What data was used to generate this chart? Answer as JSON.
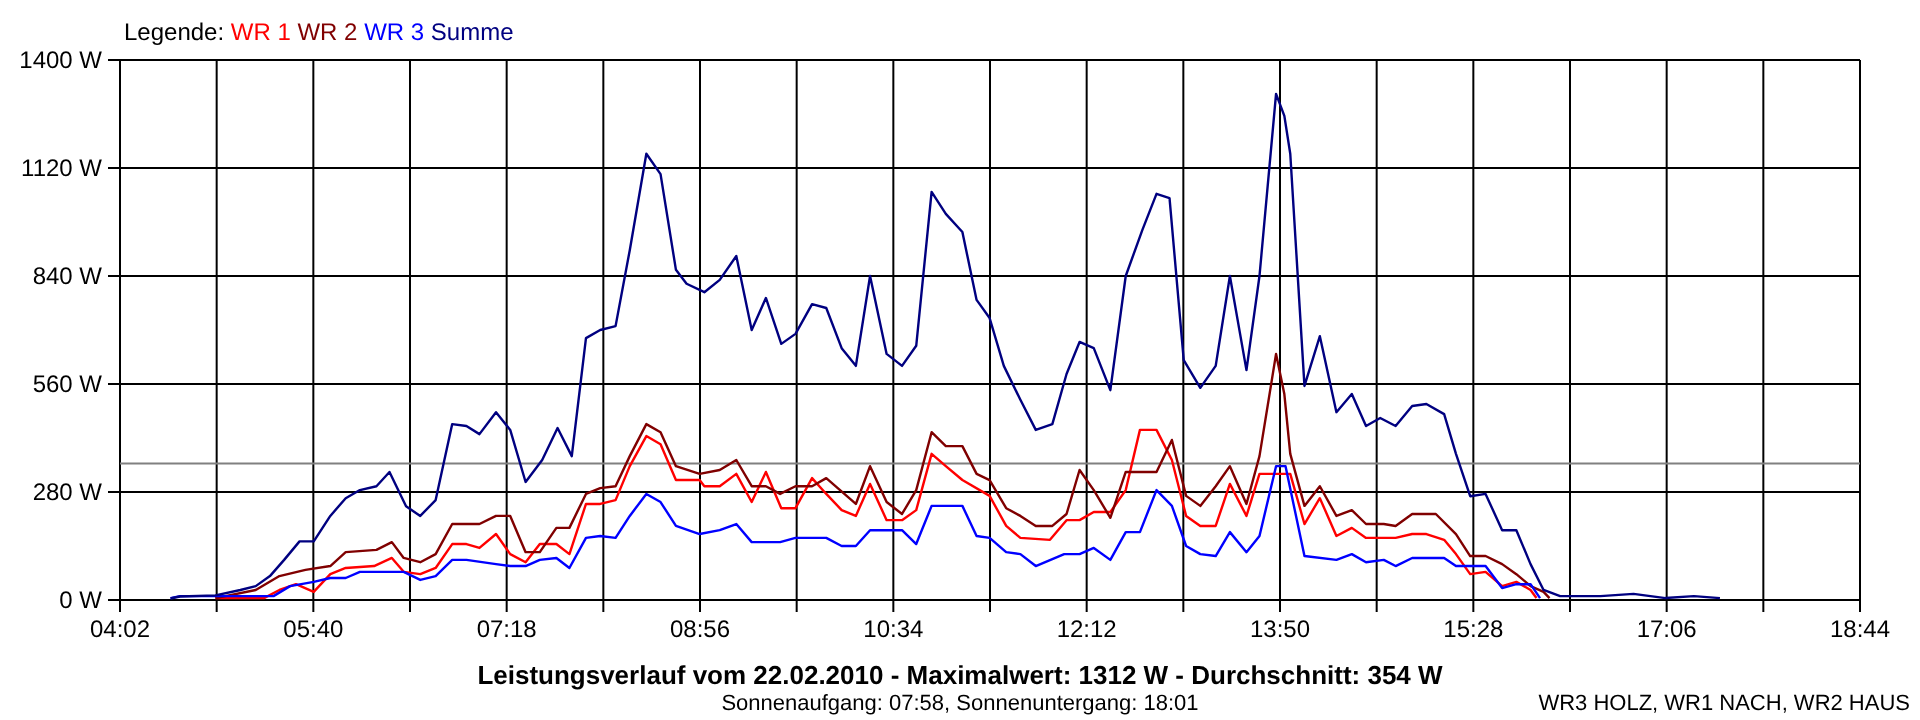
{
  "chart_data": {
    "type": "line",
    "title": "Leistungsverlauf vom 22.02.2010 - Maximalwert: 1312 W - Durchschnitt: 354 W",
    "subtitle": "Sonnenaufgang: 07:58, Sonnenuntergang: 18:01",
    "legend_title": "Legende:",
    "legend": "top left",
    "grid": true,
    "annotations": [
      "WR3 HOLZ, WR1 NACH, WR2 HAUS"
    ],
    "xlim": [
      4.0333,
      18.7333
    ],
    "xticks": [
      {
        "value": 4.0333,
        "label": "04:02"
      },
      {
        "value": 4.85,
        "label": null
      },
      {
        "value": 5.6667,
        "label": "05:40"
      },
      {
        "value": 6.4833,
        "label": null
      },
      {
        "value": 7.3,
        "label": "07:18"
      },
      {
        "value": 8.1167,
        "label": null
      },
      {
        "value": 8.9333,
        "label": "08:56"
      },
      {
        "value": 9.75,
        "label": null
      },
      {
        "value": 10.5667,
        "label": "10:34"
      },
      {
        "value": 11.3833,
        "label": null
      },
      {
        "value": 12.2,
        "label": "12:12"
      },
      {
        "value": 13.0167,
        "label": null
      },
      {
        "value": 13.8333,
        "label": "13:50"
      },
      {
        "value": 14.65,
        "label": null
      },
      {
        "value": 15.4667,
        "label": "15:28"
      },
      {
        "value": 16.2833,
        "label": null
      },
      {
        "value": 17.1,
        "label": "17:06"
      },
      {
        "value": 17.9167,
        "label": null
      },
      {
        "value": 18.7333,
        "label": "18:44"
      }
    ],
    "ylim": [
      0,
      1400
    ],
    "yticks": [
      {
        "value": 0,
        "label": "0 W"
      },
      {
        "value": 280,
        "label": "280 W"
      },
      {
        "value": 560,
        "label": "560 W"
      },
      {
        "value": 840,
        "label": "840 W"
      },
      {
        "value": 1120,
        "label": "1120 W"
      },
      {
        "value": 1400,
        "label": "1400 W"
      }
    ],
    "ref_lines": [
      {
        "axis": "y",
        "value": 354,
        "color": "#808080"
      }
    ],
    "series": [
      {
        "name": "WR 1",
        "color": "#ff0000",
        "x": [
          4.84,
          5.25,
          5.38,
          5.52,
          5.67,
          5.81,
          5.94,
          6.18,
          6.33,
          6.43,
          6.57,
          6.7,
          6.84,
          6.96,
          7.07,
          7.21,
          7.33,
          7.46,
          7.58,
          7.72,
          7.83,
          7.97,
          8.09,
          8.22,
          8.34,
          8.48,
          8.6,
          8.73,
          8.93,
          8.97,
          9.1,
          9.24,
          9.37,
          9.49,
          9.62,
          9.74,
          9.88,
          10.0,
          10.13,
          10.25,
          10.37,
          10.51,
          10.64,
          10.76,
          10.89,
          11.01,
          11.15,
          11.38,
          11.52,
          11.64,
          11.89,
          12.03,
          12.14,
          12.26,
          12.4,
          12.53,
          12.65,
          12.79,
          12.92,
          13.04,
          13.16,
          13.29,
          13.41,
          13.55,
          13.66,
          13.8,
          13.92,
          14.04,
          14.17,
          14.31,
          14.44,
          14.56,
          14.81,
          14.95,
          15.07,
          15.22,
          15.32,
          15.44,
          15.57,
          15.71,
          15.83,
          15.95,
          16.0
        ],
        "values": [
          5,
          5,
          26,
          41,
          21,
          67,
          83,
          88,
          109,
          73,
          67,
          83,
          145,
          145,
          135,
          171,
          119,
          98,
          145,
          145,
          119,
          249,
          249,
          259,
          347,
          425,
          404,
          311,
          311,
          295,
          295,
          327,
          254,
          332,
          238,
          238,
          316,
          275,
          233,
          218,
          301,
          207,
          207,
          233,
          379,
          347,
          311,
          270,
          192,
          161,
          156,
          207,
          207,
          228,
          228,
          285,
          441,
          441,
          363,
          218,
          192,
          192,
          301,
          218,
          327,
          327,
          327,
          197,
          264,
          166,
          187,
          161,
          161,
          171,
          171,
          156,
          119,
          67,
          73,
          36,
          47,
          26,
          5
        ]
      },
      {
        "name": "WR 2",
        "color": "#800000",
        "x": [
          4.84,
          5.18,
          5.38,
          5.6,
          5.81,
          5.94,
          6.2,
          6.33,
          6.43,
          6.57,
          6.7,
          6.84,
          7.07,
          7.21,
          7.33,
          7.46,
          7.58,
          7.72,
          7.83,
          7.97,
          8.09,
          8.22,
          8.34,
          8.48,
          8.6,
          8.73,
          8.93,
          9.1,
          9.24,
          9.37,
          9.49,
          9.61,
          9.74,
          9.88,
          10.0,
          10.25,
          10.37,
          10.51,
          10.64,
          10.76,
          10.89,
          11.01,
          11.15,
          11.27,
          11.38,
          11.52,
          11.64,
          11.77,
          11.91,
          12.03,
          12.14,
          12.26,
          12.4,
          12.53,
          12.79,
          12.92,
          13.04,
          13.16,
          13.29,
          13.41,
          13.55,
          13.66,
          13.8,
          13.87,
          13.92,
          14.04,
          14.17,
          14.31,
          14.44,
          14.56,
          14.71,
          14.81,
          14.95,
          15.15,
          15.32,
          15.44,
          15.57,
          15.71,
          15.83,
          15.95,
          16.06,
          16.11
        ],
        "values": [
          5,
          26,
          62,
          78,
          88,
          124,
          130,
          150,
          109,
          98,
          119,
          197,
          197,
          218,
          218,
          124,
          124,
          187,
          187,
          275,
          290,
          295,
          373,
          456,
          435,
          347,
          327,
          337,
          363,
          295,
          295,
          275,
          295,
          295,
          316,
          249,
          347,
          254,
          223,
          285,
          435,
          399,
          399,
          327,
          311,
          238,
          218,
          192,
          192,
          223,
          337,
          285,
          213,
          332,
          332,
          415,
          270,
          244,
          295,
          347,
          249,
          373,
          638,
          534,
          379,
          244,
          295,
          218,
          233,
          197,
          197,
          192,
          223,
          223,
          171,
          114,
          114,
          93,
          67,
          36,
          21,
          5
        ]
      },
      {
        "name": "WR 3",
        "color": "#0000ff",
        "x": [
          4.46,
          4.54,
          4.84,
          5.05,
          5.33,
          5.47,
          5.67,
          5.81,
          5.94,
          6.06,
          6.43,
          6.57,
          6.7,
          6.84,
          6.96,
          7.21,
          7.33,
          7.46,
          7.58,
          7.72,
          7.83,
          7.97,
          8.09,
          8.22,
          8.34,
          8.48,
          8.6,
          8.73,
          8.93,
          9.1,
          9.24,
          9.37,
          9.61,
          9.74,
          10.0,
          10.13,
          10.25,
          10.37,
          10.64,
          10.76,
          10.89,
          11.15,
          11.27,
          11.38,
          11.52,
          11.64,
          11.77,
          12.01,
          12.14,
          12.26,
          12.4,
          12.53,
          12.65,
          12.79,
          12.92,
          13.04,
          13.16,
          13.29,
          13.41,
          13.55,
          13.66,
          13.8,
          13.88,
          14.04,
          14.31,
          14.44,
          14.56,
          14.71,
          14.81,
          14.95,
          15.22,
          15.32,
          15.57,
          15.71,
          15.83,
          15.95,
          16.03
        ],
        "values": [
          5,
          10,
          10,
          10,
          10,
          36,
          47,
          57,
          57,
          73,
          73,
          52,
          62,
          104,
          104,
          93,
          88,
          88,
          104,
          109,
          83,
          161,
          166,
          161,
          218,
          275,
          254,
          192,
          171,
          181,
          197,
          150,
          150,
          161,
          161,
          140,
          140,
          181,
          181,
          145,
          244,
          244,
          166,
          161,
          124,
          119,
          88,
          119,
          119,
          135,
          104,
          176,
          176,
          285,
          244,
          140,
          119,
          114,
          176,
          124,
          166,
          347,
          347,
          114,
          104,
          119,
          98,
          104,
          88,
          109,
          109,
          88,
          88,
          31,
          41,
          41,
          5
        ]
      },
      {
        "name": "Summe",
        "color": "#000080",
        "x": [
          4.46,
          4.54,
          4.84,
          5.05,
          5.18,
          5.3,
          5.42,
          5.55,
          5.67,
          5.81,
          5.94,
          6.06,
          6.2,
          6.31,
          6.45,
          6.57,
          6.7,
          6.84,
          6.96,
          7.07,
          7.21,
          7.33,
          7.46,
          7.6,
          7.73,
          7.85,
          7.97,
          8.09,
          8.22,
          8.34,
          8.48,
          8.6,
          8.73,
          8.82,
          8.97,
          9.1,
          9.24,
          9.37,
          9.49,
          9.62,
          9.74,
          9.88,
          10.0,
          10.13,
          10.25,
          10.37,
          10.51,
          10.64,
          10.76,
          10.89,
          11.01,
          11.15,
          11.27,
          11.38,
          11.5,
          11.64,
          11.77,
          11.91,
          12.03,
          12.14,
          12.26,
          12.4,
          12.53,
          12.67,
          12.79,
          12.9,
          13.02,
          13.16,
          13.29,
          13.41,
          13.55,
          13.66,
          13.8,
          13.87,
          13.92,
          14.04,
          14.17,
          14.31,
          14.44,
          14.56,
          14.68,
          14.81,
          14.95,
          15.07,
          15.22,
          15.32,
          15.44,
          15.57,
          15.71,
          15.83,
          15.95,
          16.06,
          16.2,
          16.54,
          16.82,
          17.09,
          17.33,
          17.55
        ],
        "values": [
          4,
          9,
          12,
          26,
          36,
          62,
          104,
          152,
          152,
          218,
          264,
          285,
          295,
          332,
          243,
          218,
          259,
          456,
          451,
          430,
          487,
          441,
          306,
          363,
          446,
          373,
          679,
          700,
          710,
          907,
          1157,
          1104,
          856,
          820,
          798,
          830,
          892,
          700,
          783,
          664,
          690,
          767,
          757,
          653,
          607,
          840,
          638,
          607,
          659,
          1058,
          1001,
          954,
          778,
          731,
          607,
          519,
          441,
          456,
          586,
          669,
          653,
          544,
          840,
          959,
          1053,
          1042,
          622,
          550,
          607,
          840,
          596,
          840,
          1312,
          1255,
          1157,
          555,
          684,
          487,
          534,
          451,
          472,
          451,
          503,
          508,
          482,
          379,
          269,
          275,
          181,
          181,
          93,
          26,
          10,
          10,
          16,
          5,
          10,
          5
        ]
      }
    ]
  }
}
